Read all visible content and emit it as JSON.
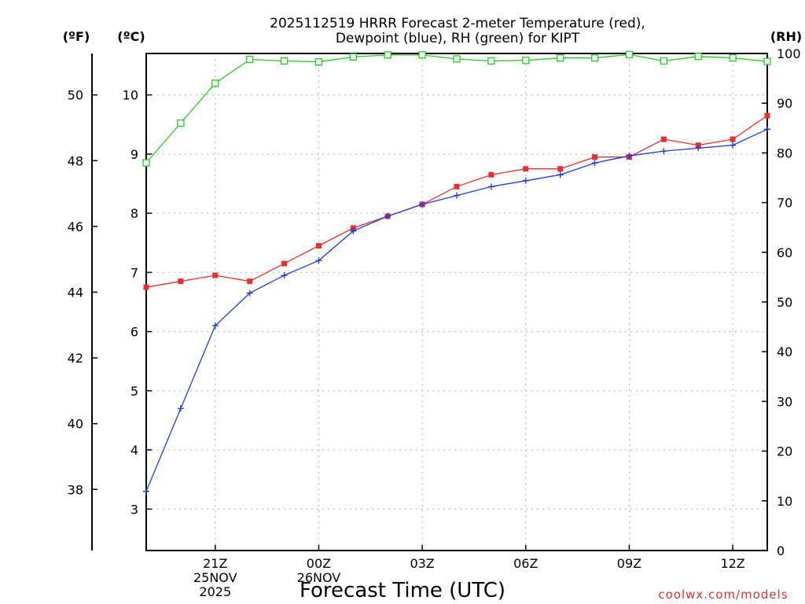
{
  "chart_data": {
    "type": "line",
    "title_lines": [
      "2025112519 HRRR Forecast 2-meter Temperature (red),",
      "Dewpoint (blue), RH (green) for KIPT"
    ],
    "xlabel": "Forecast Time (UTC)",
    "credit": "coolwx.com/models",
    "units": {
      "fahrenheit": "(ºF)",
      "celsius": "(ºC)",
      "rh": "(RH)"
    },
    "x_ticks": [
      {
        "x": 2,
        "lines": [
          "21Z",
          "25NOV",
          "2025"
        ]
      },
      {
        "x": 5,
        "lines": [
          "00Z",
          "26NOV"
        ]
      },
      {
        "x": 8,
        "lines": [
          "03Z"
        ]
      },
      {
        "x": 11,
        "lines": [
          "06Z"
        ]
      },
      {
        "x": 14,
        "lines": [
          "09Z"
        ]
      },
      {
        "x": 17,
        "lines": [
          "12Z"
        ]
      }
    ],
    "xlim": [
      0,
      18
    ],
    "celsius_axis": {
      "ylim": [
        2.3,
        10.7
      ],
      "ticks": [
        3,
        4,
        5,
        6,
        7,
        8,
        9,
        10
      ]
    },
    "fahrenheit_axis": {
      "ylim": [
        36.14,
        51.26
      ],
      "ticks": [
        38,
        40,
        42,
        44,
        46,
        48,
        50
      ]
    },
    "rh_axis": {
      "ylim": [
        0,
        100
      ],
      "ticks": [
        0,
        10,
        20,
        30,
        40,
        50,
        60,
        70,
        80,
        90,
        100
      ]
    },
    "grid": true,
    "series": [
      {
        "name": "Temperature",
        "axis": "celsius",
        "color": "#e83030",
        "marker": "filled-square",
        "x": [
          0,
          1,
          2,
          3,
          4,
          5,
          6,
          7,
          8,
          9,
          10,
          11,
          12,
          13,
          14,
          15,
          16,
          17,
          18
        ],
        "values": [
          6.75,
          6.85,
          6.95,
          6.85,
          7.15,
          7.45,
          7.75,
          7.95,
          8.15,
          8.45,
          8.65,
          8.75,
          8.75,
          8.95,
          8.95,
          9.25,
          9.15,
          9.25,
          9.65
        ]
      },
      {
        "name": "Dewpoint",
        "axis": "celsius",
        "color": "#1e3ee0",
        "marker": "plus",
        "x": [
          0,
          1,
          2,
          3,
          4,
          5,
          6,
          7,
          8,
          9,
          10,
          11,
          12,
          13,
          14,
          15,
          16,
          17,
          18
        ],
        "values": [
          3.3,
          4.7,
          6.1,
          6.65,
          6.95,
          7.2,
          7.7,
          7.95,
          8.15,
          8.3,
          8.45,
          8.55,
          8.65,
          8.85,
          8.97,
          9.05,
          9.1,
          9.15,
          9.42
        ]
      },
      {
        "name": "RH",
        "axis": "rh",
        "color": "#22cc22",
        "marker": "open-square",
        "x": [
          0,
          1,
          2,
          3,
          4,
          5,
          6,
          7,
          8,
          9,
          10,
          11,
          12,
          13,
          14,
          15,
          16,
          17,
          18
        ],
        "values": [
          78,
          86,
          94,
          98.8,
          98.5,
          98.3,
          99.3,
          99.7,
          99.7,
          98.9,
          98.5,
          98.6,
          99.1,
          99.1,
          99.8,
          98.5,
          99.4,
          99.1,
          98.4
        ]
      }
    ]
  }
}
